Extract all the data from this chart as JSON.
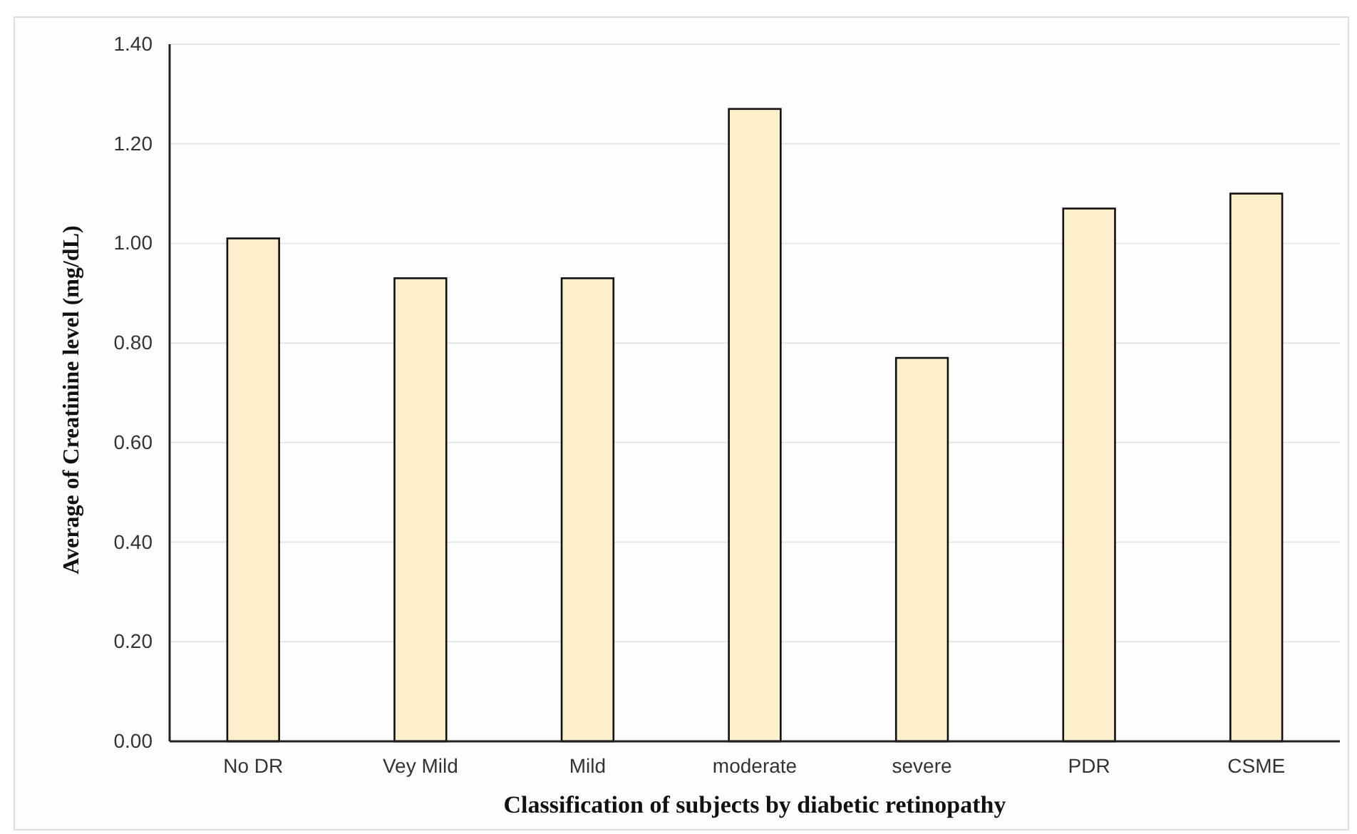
{
  "chart_data": {
    "type": "bar",
    "xlabel": "Classification of subjects by diabetic retinopathy",
    "ylabel": "Average of Creatinine level (mg/dL)",
    "categories": [
      "No DR",
      "Vey Mild",
      "Mild",
      "moderate",
      "severe",
      "PDR",
      "CSME"
    ],
    "values": [
      1.01,
      0.93,
      0.93,
      1.27,
      0.77,
      1.07,
      1.1
    ],
    "color": "#fdefcc",
    "ylim": [
      0,
      1.4
    ],
    "yticks": [
      {
        "value": 0,
        "label": "0.00"
      },
      {
        "value": 0.2,
        "label": "0.20"
      },
      {
        "value": 0.4,
        "label": "0.40"
      },
      {
        "value": 0.6,
        "label": "0.60"
      },
      {
        "value": 0.8,
        "label": "0.80"
      },
      {
        "value": 1,
        "label": "1.00"
      },
      {
        "value": 1.2,
        "label": "1.20"
      },
      {
        "value": 1.4,
        "label": "1.40"
      }
    ],
    "grid": "y"
  }
}
